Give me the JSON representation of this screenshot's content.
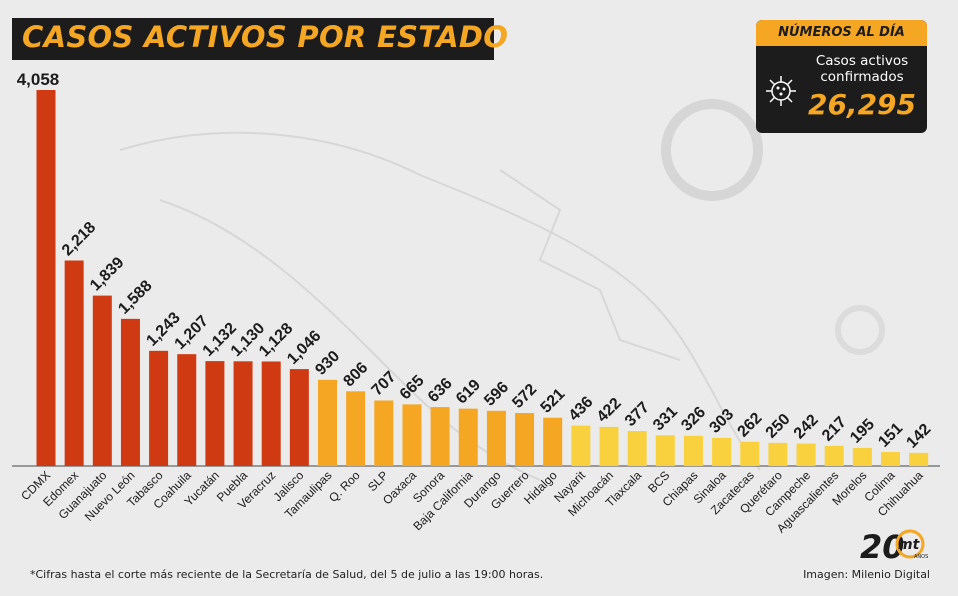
{
  "header": {
    "title": "CASOS ACTIVOS POR ESTADO"
  },
  "stat_box": {
    "heading": "NÚMEROS AL DÍA",
    "label": "Casos activos confirmados",
    "value": "26,295"
  },
  "footer": {
    "note": "*Cifras hasta el corte más reciente de la Secretaría de Salud, del 5 de julio a las 19:00 horas.",
    "credit": "Imagen: Milenio Digital"
  },
  "logo": {
    "text": "20",
    "brand": "mt",
    "sub": "AÑOS"
  },
  "colors": {
    "red": "#cf3a12",
    "orange": "#f5a623",
    "yellow": "#f9d13e",
    "dark": "#1c1c1c"
  },
  "chart_data": {
    "type": "bar",
    "title": "CASOS ACTIVOS POR ESTADO",
    "xlabel": "",
    "ylabel": "",
    "ylim": [
      0,
      4058
    ],
    "grid": false,
    "categories": [
      "CDMX",
      "Edomex",
      "Guanajuato",
      "Nuevo León",
      "Tabasco",
      "Coahuila",
      "Yucatán",
      "Puebla",
      "Veracruz",
      "Jalisco",
      "Tamaulipas",
      "Q. Roo",
      "SLP",
      "Oaxaca",
      "Sonora",
      "Baja California",
      "Durango",
      "Guerrero",
      "Hidalgo",
      "Nayarit",
      "Michoacán",
      "Tlaxcala",
      "BCS",
      "Chiapas",
      "Sinaloa",
      "Zacatecas",
      "Querétaro",
      "Campeche",
      "Aguascalientes",
      "Morelos",
      "Colima",
      "Chihuahua"
    ],
    "values": [
      4058,
      2218,
      1839,
      1588,
      1243,
      1207,
      1132,
      1130,
      1128,
      1046,
      930,
      806,
      707,
      665,
      636,
      619,
      596,
      572,
      521,
      436,
      422,
      377,
      331,
      326,
      303,
      262,
      250,
      242,
      217,
      195,
      151,
      142
    ],
    "value_labels": [
      "4,058",
      "2,218",
      "1,839",
      "1,588",
      "1,243",
      "1,207",
      "1,132",
      "1,130",
      "1,128",
      "1,046",
      "930",
      "806",
      "707",
      "665",
      "636",
      "619",
      "596",
      "572",
      "521",
      "436",
      "422",
      "377",
      "331",
      "326",
      "303",
      "262",
      "250",
      "242",
      "217",
      "195",
      "151",
      "142"
    ],
    "bar_colors": [
      "#cf3a12",
      "#cf3a12",
      "#cf3a12",
      "#cf3a12",
      "#cf3a12",
      "#cf3a12",
      "#cf3a12",
      "#cf3a12",
      "#cf3a12",
      "#cf3a12",
      "#f5a623",
      "#f5a623",
      "#f5a623",
      "#f5a623",
      "#f5a623",
      "#f5a623",
      "#f5a623",
      "#f5a623",
      "#f5a623",
      "#f9d13e",
      "#f9d13e",
      "#f9d13e",
      "#f9d13e",
      "#f9d13e",
      "#f9d13e",
      "#f9d13e",
      "#f9d13e",
      "#f9d13e",
      "#f9d13e",
      "#f9d13e",
      "#f9d13e",
      "#f9d13e"
    ]
  }
}
